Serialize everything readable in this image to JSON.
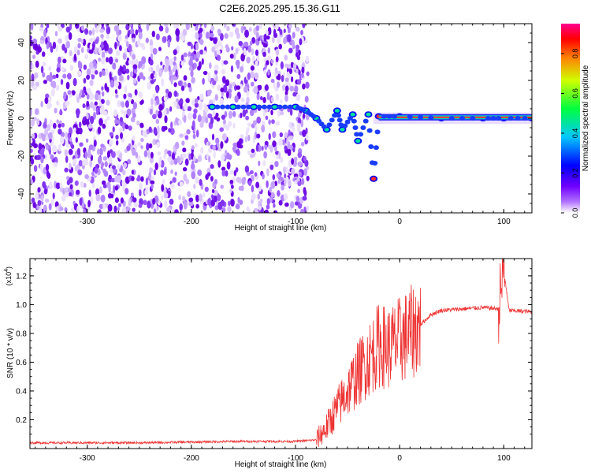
{
  "title": "C2E6.2025.295.15.36.G11",
  "chart_data": [
    {
      "type": "heatmap",
      "title": "C2E6.2025.295.15.36.G11",
      "xlabel": "Height of straight line (km)",
      "ylabel": "Frequency (Hz)",
      "xlim": [
        -355,
        127
      ],
      "ylim": [
        -50,
        50
      ],
      "xticks": [
        -300,
        -200,
        -100,
        0,
        100
      ],
      "xtick_labels": [
        "-300",
        "-200",
        "-100",
        "0",
        "100"
      ],
      "yticks": [
        -40,
        -20,
        0,
        20,
        40
      ],
      "ytick_labels": [
        "-40",
        "-20",
        "0",
        "20",
        "40"
      ],
      "colorbar": {
        "label": "Normalized spectral amplitude",
        "range": [
          0,
          0.95
        ],
        "ticks": [
          0.0,
          0.2,
          0.4,
          0.6,
          0.8
        ],
        "tick_labels": [
          "0.0",
          "0.2",
          "0.4",
          "0.6",
          "0.8"
        ],
        "stops": [
          "#ffffff",
          "#a000ff",
          "#0000ff",
          "#00ffff",
          "#00ff00",
          "#ffff00",
          "#ff0000",
          "#ff00a0"
        ]
      },
      "noise_region_x": [
        -355,
        -88
      ],
      "signal_track": [
        {
          "x": -180,
          "y": 6
        },
        {
          "x": -160,
          "y": 6
        },
        {
          "x": -140,
          "y": 6
        },
        {
          "x": -120,
          "y": 6
        },
        {
          "x": -100,
          "y": 6
        },
        {
          "x": -90,
          "y": 4
        },
        {
          "x": -80,
          "y": 0
        },
        {
          "x": -70,
          "y": -6
        },
        {
          "x": -60,
          "y": 4
        },
        {
          "x": -55,
          "y": -6
        },
        {
          "x": -45,
          "y": 2
        },
        {
          "x": -40,
          "y": -12
        },
        {
          "x": -30,
          "y": 2
        },
        {
          "x": -25,
          "y": -32
        },
        {
          "x": -20,
          "y": 1
        },
        {
          "x": 0,
          "y": 1
        },
        {
          "x": 40,
          "y": 0
        },
        {
          "x": 80,
          "y": 0
        },
        {
          "x": 100,
          "y": 0
        },
        {
          "x": 127,
          "y": 0
        }
      ]
    },
    {
      "type": "line",
      "xlabel": "Height of straight line (km)",
      "ylabel": "SNR (10 * v/v)",
      "scale_label": "(x10",
      "scale_exponent": "4",
      "scale_suffix": ")",
      "xlim": [
        -355,
        127
      ],
      "ylim": [
        0,
        1.32
      ],
      "xticks": [
        -300,
        -200,
        -100,
        0,
        100
      ],
      "xtick_labels": [
        "-300",
        "-200",
        "-100",
        "0",
        "100"
      ],
      "yticks": [
        0.2,
        0.4,
        0.6,
        0.8,
        1.0,
        1.2
      ],
      "ytick_labels": [
        "0.2",
        "0.4",
        "0.6",
        "0.8",
        "1.0",
        "1.2"
      ],
      "color": "#ee3333",
      "series": [
        {
          "name": "SNR",
          "x": [
            -355,
            -300,
            -250,
            -200,
            -150,
            -100,
            -80,
            -70,
            -60,
            -50,
            -40,
            -30,
            -20,
            -10,
            0,
            10,
            20,
            30,
            40,
            60,
            80,
            95,
            100,
            105,
            127
          ],
          "y": [
            0.04,
            0.04,
            0.04,
            0.045,
            0.05,
            0.05,
            0.06,
            0.15,
            0.28,
            0.4,
            0.52,
            0.62,
            0.72,
            0.7,
            0.75,
            0.8,
            0.86,
            0.93,
            0.96,
            0.97,
            0.98,
            0.97,
            1.25,
            0.96,
            0.95
          ]
        }
      ]
    }
  ]
}
